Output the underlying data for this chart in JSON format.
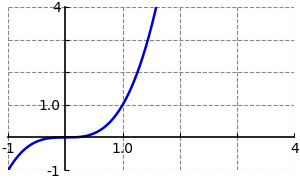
{
  "title": "",
  "xlim": [
    -1,
    4
  ],
  "ylim": [
    -1,
    4
  ],
  "xticks": [
    -1,
    1,
    2,
    3,
    4
  ],
  "yticks": [
    -1,
    1,
    2,
    3,
    4
  ],
  "xtick_labels_pos": [
    -1,
    1,
    4
  ],
  "xtick_labels_val": [
    "-1",
    "1.0",
    "4"
  ],
  "ytick_labels_pos": [
    -1,
    1,
    4
  ],
  "ytick_labels_val": [
    "-1",
    "1.0",
    "4"
  ],
  "curve_color": "#0000cc",
  "curve_linewidth": 1.8,
  "grid_color": "#888888",
  "grid_linestyle": "--",
  "grid_linewidth": 0.8,
  "background_color": "#ffffff",
  "x_start": -1.0,
  "x_end": 4.0,
  "num_points": 2000
}
